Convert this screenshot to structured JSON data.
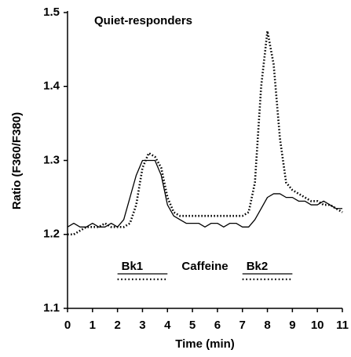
{
  "chart_data": {
    "type": "line",
    "annotation": "Quiet-responders",
    "xlabel": "Time (min)",
    "ylabel": "Ratio (F360/F380)",
    "xlim": [
      0,
      11
    ],
    "xticks": [
      0,
      1,
      2,
      3,
      4,
      5,
      6,
      7,
      8,
      9,
      10,
      11
    ],
    "ylim": [
      1.1,
      1.5
    ],
    "yticks": [
      1.1,
      1.2,
      1.3,
      1.4,
      1.5
    ],
    "grid": false,
    "x": [
      0,
      0.25,
      0.5,
      0.75,
      1,
      1.25,
      1.5,
      1.75,
      2,
      2.25,
      2.5,
      2.75,
      3,
      3.25,
      3.5,
      3.75,
      4,
      4.25,
      4.5,
      4.75,
      5,
      5.25,
      5.5,
      5.75,
      6,
      6.25,
      6.5,
      6.75,
      7,
      7.25,
      7.5,
      7.75,
      8,
      8.25,
      8.5,
      8.75,
      9,
      9.25,
      9.5,
      9.75,
      10,
      10.25,
      10.5,
      10.75,
      11
    ],
    "series": [
      {
        "color": "#000000",
        "dash": "solid",
        "values": [
          1.21,
          1.215,
          1.21,
          1.21,
          1.215,
          1.21,
          1.21,
          1.215,
          1.21,
          1.22,
          1.25,
          1.28,
          1.3,
          1.3,
          1.3,
          1.28,
          1.24,
          1.225,
          1.22,
          1.215,
          1.215,
          1.215,
          1.21,
          1.215,
          1.215,
          1.21,
          1.215,
          1.215,
          1.21,
          1.21,
          1.22,
          1.235,
          1.25,
          1.255,
          1.255,
          1.25,
          1.25,
          1.245,
          1.245,
          1.24,
          1.24,
          1.245,
          1.24,
          1.235,
          1.235
        ]
      },
      {
        "color": "#000000",
        "dash": "dotted",
        "values": [
          1.2,
          1.2,
          1.205,
          1.21,
          1.21,
          1.21,
          1.215,
          1.21,
          1.21,
          1.21,
          1.215,
          1.24,
          1.29,
          1.31,
          1.305,
          1.29,
          1.25,
          1.23,
          1.225,
          1.225,
          1.225,
          1.225,
          1.225,
          1.225,
          1.225,
          1.225,
          1.225,
          1.225,
          1.225,
          1.23,
          1.27,
          1.4,
          1.475,
          1.43,
          1.33,
          1.27,
          1.26,
          1.255,
          1.25,
          1.245,
          1.245,
          1.24,
          1.24,
          1.235,
          1.23
        ]
      }
    ],
    "periods": [
      {
        "label": "Bk1",
        "solid": [
          2,
          4
        ],
        "dotted": [
          2,
          4
        ]
      },
      {
        "label": "Caffeine"
      },
      {
        "label": "Bk2",
        "solid": [
          7,
          9
        ],
        "dotted": [
          7,
          9
        ]
      }
    ]
  }
}
